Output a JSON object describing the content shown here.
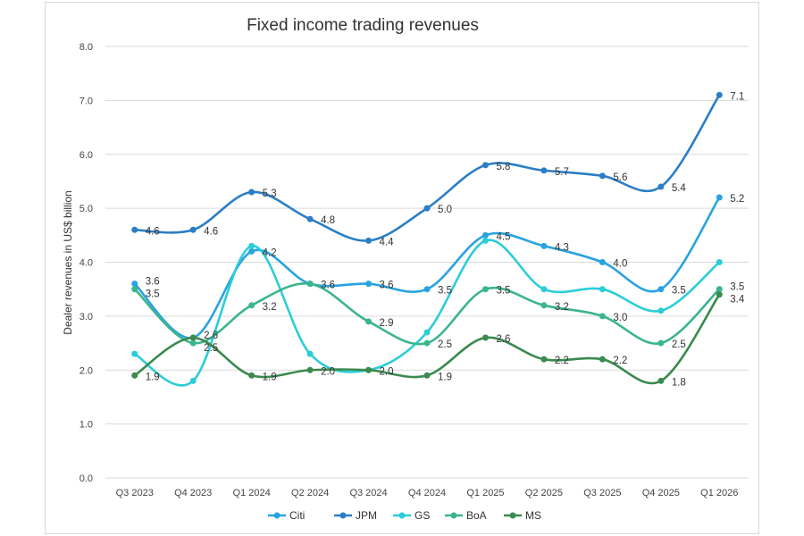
{
  "chart_data": {
    "type": "line",
    "title": "Fixed income trading revenues",
    "xlabel": "",
    "ylabel": "Dealer revenues in US$ billion",
    "ylim": [
      0,
      8
    ],
    "yticks": [
      "0.0",
      "1.0",
      "2.0",
      "3.0",
      "4.0",
      "5.0",
      "6.0",
      "7.0",
      "8.0"
    ],
    "grid": true,
    "smooth": true,
    "legend_position": "bottom",
    "categories": [
      "Q3 2023",
      "Q4 2023",
      "Q1 2024",
      "Q2 2024",
      "Q3 2024",
      "Q4 2024",
      "Q1 2025",
      "Q2 2025",
      "Q3 2025",
      "Q4 2025",
      "Q1 2026"
    ],
    "series": [
      {
        "name": "Citi",
        "color": "#29a3e0",
        "values": [
          3.6,
          2.6,
          4.2,
          3.6,
          3.6,
          3.5,
          4.5,
          4.3,
          4.0,
          3.5,
          5.2
        ],
        "labels_shown": [
          true,
          false,
          true,
          true,
          true,
          true,
          true,
          true,
          true,
          true,
          true
        ]
      },
      {
        "name": "JPM",
        "color": "#2b7ec6",
        "values": [
          4.6,
          4.6,
          5.3,
          4.8,
          4.4,
          5.0,
          5.8,
          5.7,
          5.6,
          5.4,
          7.1
        ],
        "labels_shown": [
          true,
          true,
          true,
          true,
          true,
          true,
          true,
          true,
          true,
          true,
          true
        ]
      },
      {
        "name": "GS",
        "color": "#2ccdd8",
        "values": [
          2.3,
          1.8,
          4.3,
          2.3,
          2.0,
          2.7,
          4.4,
          3.5,
          3.5,
          3.1,
          4.0
        ],
        "labels_shown": [
          false,
          false,
          false,
          false,
          false,
          false,
          false,
          false,
          false,
          false,
          false
        ]
      },
      {
        "name": "BoA",
        "color": "#3bb58e",
        "values": [
          3.5,
          2.5,
          3.2,
          3.6,
          2.9,
          2.5,
          3.5,
          3.2,
          3.0,
          2.5,
          3.5
        ],
        "labels_shown": [
          true,
          true,
          true,
          false,
          true,
          true,
          true,
          true,
          true,
          true,
          true
        ]
      },
      {
        "name": "MS",
        "color": "#3b8a4f",
        "values": [
          1.9,
          2.6,
          1.9,
          2.0,
          2.0,
          1.9,
          2.6,
          2.2,
          2.2,
          1.8,
          3.4
        ],
        "labels_shown": [
          true,
          true,
          true,
          true,
          true,
          true,
          true,
          true,
          true,
          true,
          true
        ]
      }
    ]
  }
}
